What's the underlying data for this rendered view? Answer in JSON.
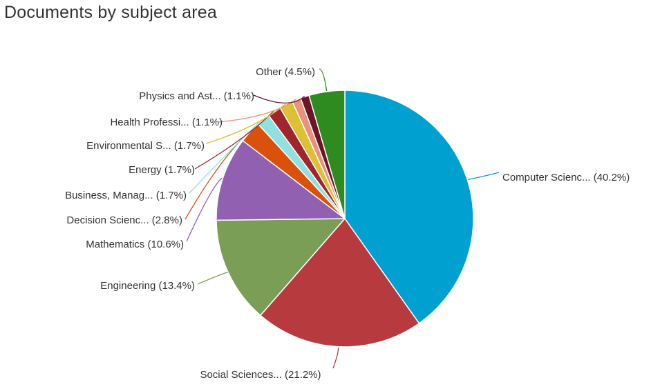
{
  "chart_data": {
    "type": "pie",
    "title": "Documents by subject area",
    "slices": [
      {
        "label": "Computer Scienc... (40.2%)",
        "value": 40.2,
        "color": "#00a0d0"
      },
      {
        "label": "Social Sciences... (21.2%)",
        "value": 21.2,
        "color": "#b73a3f"
      },
      {
        "label": "Engineering (13.4%)",
        "value": 13.4,
        "color": "#7b9e56"
      },
      {
        "label": "Mathematics (10.6%)",
        "value": 10.6,
        "color": "#9160b0"
      },
      {
        "label": "Decision Scienc... (2.8%)",
        "value": 2.8,
        "color": "#d9510a"
      },
      {
        "label": "Business, Manag... (1.7%)",
        "value": 1.7,
        "color": "#8fe0de"
      },
      {
        "label": "Energy (1.7%)",
        "value": 1.7,
        "color": "#a1252d"
      },
      {
        "label": "Environmental S... (1.7%)",
        "value": 1.7,
        "color": "#dcc134"
      },
      {
        "label": "Health Professi... (1.1%)",
        "value": 1.1,
        "color": "#e8917d"
      },
      {
        "label": "Physics and Ast... (1.1%)",
        "value": 1.1,
        "color": "#6b1527"
      },
      {
        "label": "Other (4.5%)",
        "value": 4.5,
        "color": "#2e8b1f"
      }
    ]
  }
}
